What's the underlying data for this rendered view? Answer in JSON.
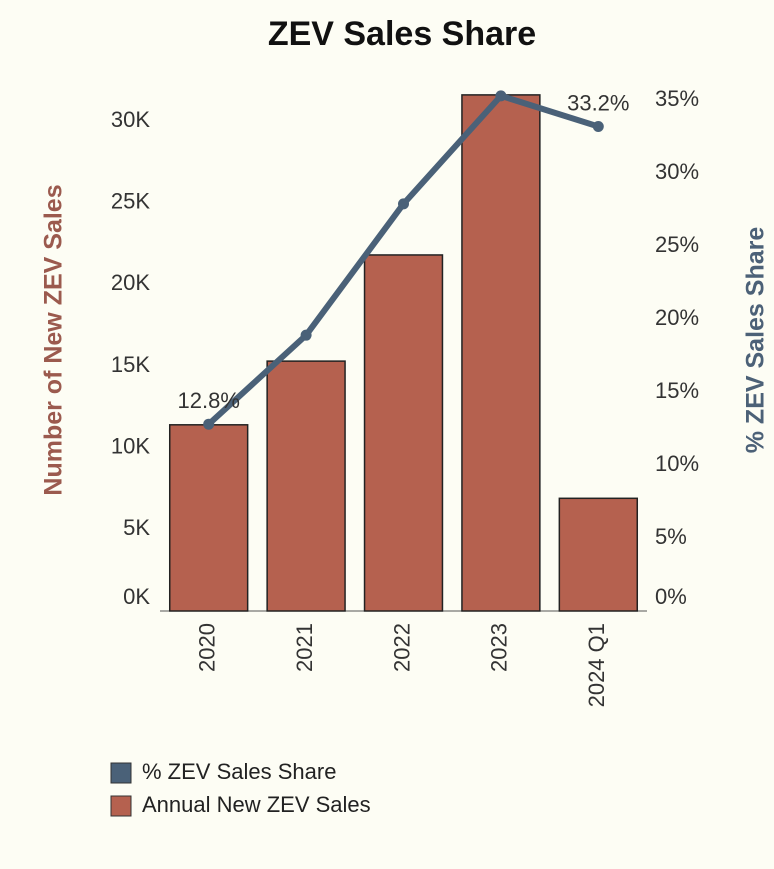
{
  "chart_data": {
    "type": "bar",
    "title": "ZEV Sales Share",
    "categories": [
      "2020",
      "2021",
      "2022",
      "2023",
      "2024 Q1"
    ],
    "series": [
      {
        "name": "% ZEV Sales Share",
        "type": "line",
        "axis": "y2",
        "color": "#4a6178",
        "values": [
          12.8,
          18.9,
          27.9,
          35.3,
          33.2
        ],
        "value_labels": [
          "12.8%",
          null,
          null,
          null,
          "33.2%"
        ]
      },
      {
        "name": "Annual New ZEV Sales",
        "type": "bar",
        "color": "#b5614f",
        "values": [
          11400,
          15300,
          21800,
          31600,
          6900
        ]
      }
    ],
    "ylabel": "Number of New ZEV Sales",
    "y2label": "% ZEV Sales Share",
    "ylim": [
      0,
      31900
    ],
    "yticks": [
      {
        "value": 0,
        "label": "0K"
      },
      {
        "value": 5000,
        "label": "5K"
      },
      {
        "value": 10000,
        "label": "10K"
      },
      {
        "value": 15000,
        "label": "15K"
      },
      {
        "value": 20000,
        "label": "20K"
      },
      {
        "value": 25000,
        "label": "25K"
      },
      {
        "value": 30000,
        "label": "30K"
      }
    ],
    "y2lim": [
      0,
      35.7
    ],
    "y2ticks": [
      {
        "value": 0,
        "label": "0%"
      },
      {
        "value": 5,
        "label": "5%"
      },
      {
        "value": 10,
        "label": "10%"
      },
      {
        "value": 15,
        "label": "15%"
      },
      {
        "value": 20,
        "label": "20%"
      },
      {
        "value": 25,
        "label": "25%"
      },
      {
        "value": 30,
        "label": "30%"
      },
      {
        "value": 35,
        "label": "35%"
      }
    ],
    "legend": "bottom-left"
  }
}
